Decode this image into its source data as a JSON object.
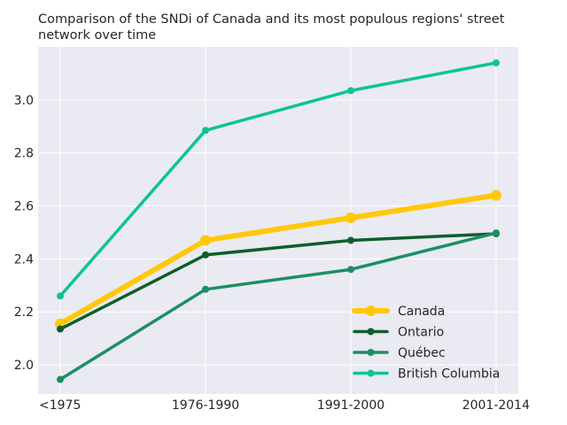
{
  "chart_data": {
    "type": "line",
    "title": "Comparison of the SNDi of Canada and its most populous regions' street network over time",
    "title_lines": [
      "Comparison of the SNDi of Canada and its most populous regions' street",
      "network over time"
    ],
    "xlabel": "",
    "ylabel": "",
    "categories": [
      "<1975",
      "1976-1990",
      "1991-2000",
      "2001-2014"
    ],
    "ylim": [
      1.89,
      3.2
    ],
    "yticks": [
      "2.0",
      "2.2",
      "2.4",
      "2.6",
      "2.8",
      "3.0"
    ],
    "grid": true,
    "legend_position": "lower-right",
    "background_color": "#eaeaf2",
    "series": [
      {
        "name": "Canada",
        "values": [
          2.155,
          2.47,
          2.555,
          2.64
        ],
        "color": "#ffc80a",
        "width": 6,
        "marker": 6
      },
      {
        "name": "Ontario",
        "values": [
          2.135,
          2.415,
          2.47,
          2.495
        ],
        "color": "#0e5e2c",
        "width": 3.5,
        "marker": 4
      },
      {
        "name": "Québec",
        "values": [
          1.945,
          2.285,
          2.36,
          2.498
        ],
        "color": "#1c8f62",
        "width": 3.5,
        "marker": 4
      },
      {
        "name": "British Columbia",
        "values": [
          2.26,
          2.885,
          3.035,
          3.14
        ],
        "color": "#0bc496",
        "width": 3.5,
        "marker": 4
      }
    ]
  }
}
